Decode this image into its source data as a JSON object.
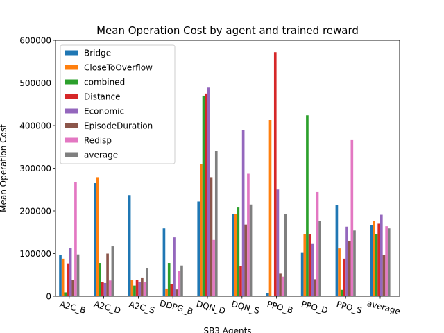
{
  "chart_data": {
    "type": "bar",
    "title": "Mean Operation Cost by agent and trained reward",
    "xlabel": "SB3 Agents",
    "ylabel": "Mean Operation Cost",
    "ylim": [
      0,
      600000
    ],
    "yticks": [
      0,
      100000,
      200000,
      300000,
      400000,
      500000,
      600000
    ],
    "legend_position": "upper-left",
    "grid": false,
    "categories": [
      "A2C_B",
      "A2C_D",
      "A2C_S",
      "DDPG_B",
      "DQN_D",
      "DQN_S",
      "PPO_B",
      "PPO_D",
      "PPO_S",
      "average"
    ],
    "series": [
      {
        "name": "Bridge",
        "color": "#1f77b4",
        "values": [
          96000,
          265000,
          237000,
          159000,
          222000,
          192000,
          8000,
          103000,
          213000,
          166000
        ]
      },
      {
        "name": "CloseToOverflow",
        "color": "#ff7f0e",
        "values": [
          88000,
          279000,
          38000,
          18000,
          310000,
          193000,
          413000,
          145000,
          112000,
          177000
        ]
      },
      {
        "name": "combined",
        "color": "#2ca02c",
        "values": [
          9000,
          78000,
          25000,
          78000,
          470000,
          208000,
          0,
          424000,
          15000,
          145000
        ]
      },
      {
        "name": "Distance",
        "color": "#d62728",
        "values": [
          77000,
          33000,
          39000,
          28000,
          475000,
          71000,
          572000,
          146000,
          88000,
          170000
        ]
      },
      {
        "name": "Economic",
        "color": "#9467bd",
        "values": [
          113000,
          31000,
          34000,
          138000,
          489000,
          390000,
          250000,
          124000,
          163000,
          191000
        ]
      },
      {
        "name": "EpisodeDuration",
        "color": "#8c564b",
        "values": [
          38000,
          100000,
          44000,
          16000,
          279000,
          168000,
          53000,
          40000,
          130000,
          97000
        ]
      },
      {
        "name": "Redisp",
        "color": "#e377c2",
        "values": [
          267000,
          37000,
          33000,
          59000,
          132000,
          287000,
          46000,
          244000,
          366000,
          164000
        ]
      },
      {
        "name": "average",
        "color": "#7f7f7f",
        "values": [
          98000,
          117000,
          65000,
          72000,
          340000,
          215000,
          192000,
          176000,
          154000,
          159000
        ]
      }
    ]
  }
}
